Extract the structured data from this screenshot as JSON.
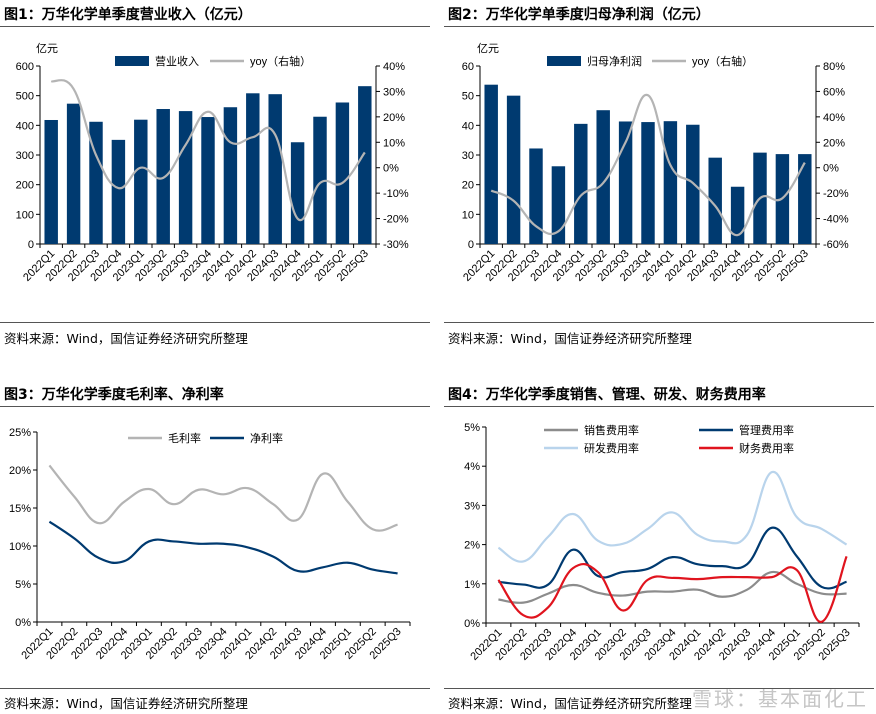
{
  "source_note": "资料来源：Wind，国信证券经济研究所整理",
  "watermark": "雪球：基本面化工",
  "colors": {
    "navy": "#003a70",
    "gray": "#b4b4b4",
    "dgray": "#8c8c8c",
    "lightblue": "#b9d4ec",
    "red": "#e0141e"
  },
  "chart_data": [
    {
      "type": "bar",
      "title": "图1：万华化学单季度营业收入（亿元）",
      "ylabel": "亿元",
      "categories": [
        "2022Q1",
        "2022Q2",
        "2022Q3",
        "2022Q4",
        "2023Q1",
        "2023Q2",
        "2023Q3",
        "2023Q4",
        "2024Q1",
        "2024Q2",
        "2024Q3",
        "2024Q4",
        "2025Q1",
        "2025Q2",
        "2025Q3"
      ],
      "ylim": [
        0,
        600
      ],
      "yticks": [
        "0",
        "100",
        "200",
        "300",
        "400",
        "500",
        "600"
      ],
      "y2lim": [
        -30,
        40
      ],
      "y2ticks": [
        "-30%",
        "-20%",
        "-10%",
        "0%",
        "10%",
        "20%",
        "30%",
        "40%"
      ],
      "series": [
        {
          "name": "营业收入",
          "kind": "bar",
          "axis": "left",
          "color": "#003a70",
          "values": [
            418,
            473,
            412,
            351,
            419,
            455,
            448,
            428,
            461,
            508,
            505,
            343,
            429,
            477,
            532
          ]
        },
        {
          "name": "yoy（右轴）",
          "kind": "line",
          "axis": "right",
          "color": "#b4b4b4",
          "values": [
            34,
            31,
            5,
            -8,
            0,
            -4,
            9,
            22,
            10,
            12,
            13,
            -20,
            -6,
            -6,
            6
          ]
        }
      ],
      "legend": "top"
    },
    {
      "type": "bar",
      "title": "图2：万华化学单季度归母净利润（亿元）",
      "ylabel": "亿元",
      "categories": [
        "2022Q1",
        "2022Q2",
        "2022Q3",
        "2022Q4",
        "2023Q1",
        "2023Q2",
        "2023Q3",
        "2023Q4",
        "2024Q1",
        "2024Q2",
        "2024Q3",
        "2024Q4",
        "2025Q1",
        "2025Q2",
        "2025Q3"
      ],
      "ylim": [
        0,
        60
      ],
      "yticks": [
        "0",
        "10",
        "20",
        "30",
        "40",
        "50",
        "60"
      ],
      "y2lim": [
        -60,
        80
      ],
      "y2ticks": [
        "-60%",
        "-40%",
        "-20%",
        "0%",
        "20%",
        "40%",
        "60%",
        "80%"
      ],
      "series": [
        {
          "name": "归母净利润",
          "kind": "bar",
          "axis": "left",
          "color": "#003a70",
          "values": [
            53.7,
            50.0,
            32.2,
            26.2,
            40.5,
            45.1,
            41.3,
            41.1,
            41.4,
            40.2,
            29.1,
            19.3,
            30.8,
            30.3,
            30.3
          ]
        },
        {
          "name": "yoy（右轴）",
          "kind": "line",
          "axis": "right",
          "color": "#b4b4b4",
          "values": [
            -18,
            -26,
            -46,
            -50,
            -22,
            -12,
            20,
            57,
            2,
            -12,
            -30,
            -53,
            -24,
            -24,
            4
          ]
        }
      ],
      "legend": "top"
    },
    {
      "type": "line",
      "title": "图3：万华化学季度毛利率、净利率",
      "categories": [
        "2022Q1",
        "2022Q2",
        "2022Q3",
        "2022Q4",
        "2023Q1",
        "2023Q2",
        "2023Q3",
        "2023Q4",
        "2024Q1",
        "2024Q2",
        "2024Q3",
        "2024Q4",
        "2025Q1",
        "2025Q2",
        "2025Q3"
      ],
      "ylim": [
        0,
        25
      ],
      "yticks": [
        "0%",
        "5%",
        "10%",
        "15%",
        "20%",
        "25%"
      ],
      "series": [
        {
          "name": "毛利率",
          "color": "#b4b4b4",
          "values": [
            20.6,
            16.5,
            13.0,
            15.8,
            17.5,
            15.5,
            17.4,
            16.8,
            17.6,
            15.5,
            13.5,
            19.5,
            15.8,
            12.2,
            12.8
          ]
        },
        {
          "name": "净利率",
          "color": "#003a70",
          "values": [
            13.2,
            11.0,
            8.4,
            8.0,
            10.6,
            10.6,
            10.3,
            10.3,
            9.8,
            8.6,
            6.7,
            7.2,
            7.8,
            6.9,
            6.4
          ]
        }
      ],
      "legend": "top"
    },
    {
      "type": "line",
      "title": "图4：万华化学季度销售、管理、研发、财务费用率",
      "categories": [
        "2022Q1",
        "2022Q2",
        "2022Q3",
        "2022Q4",
        "2023Q1",
        "2023Q2",
        "2023Q3",
        "2023Q4",
        "2024Q1",
        "2024Q2",
        "2024Q3",
        "2024Q4",
        "2025Q1",
        "2025Q2",
        "2025Q3"
      ],
      "ylim": [
        0,
        5
      ],
      "yticks": [
        "0%",
        "1%",
        "2%",
        "3%",
        "4%",
        "5%"
      ],
      "series": [
        {
          "name": "销售费用率",
          "color": "#8c8c8c",
          "values": [
            0.6,
            0.52,
            0.75,
            0.97,
            0.77,
            0.7,
            0.8,
            0.8,
            0.85,
            0.67,
            0.85,
            1.3,
            1.0,
            0.75,
            0.75
          ]
        },
        {
          "name": "管理费用率",
          "color": "#003a70",
          "values": [
            1.05,
            0.98,
            0.98,
            1.87,
            1.2,
            1.3,
            1.38,
            1.68,
            1.5,
            1.45,
            1.5,
            2.43,
            1.7,
            0.92,
            1.05
          ]
        },
        {
          "name": "研发费用率",
          "color": "#b9d4ec",
          "values": [
            1.92,
            1.57,
            2.2,
            2.78,
            2.1,
            2.02,
            2.4,
            2.82,
            2.25,
            2.08,
            2.25,
            3.85,
            2.7,
            2.4,
            2.0
          ]
        },
        {
          "name": "财务费用率",
          "color": "#e0141e",
          "values": [
            1.1,
            0.2,
            0.4,
            1.4,
            1.3,
            0.32,
            1.1,
            1.15,
            1.12,
            1.17,
            1.17,
            1.17,
            1.35,
            0.03,
            1.7
          ]
        }
      ],
      "legend": "top"
    }
  ]
}
